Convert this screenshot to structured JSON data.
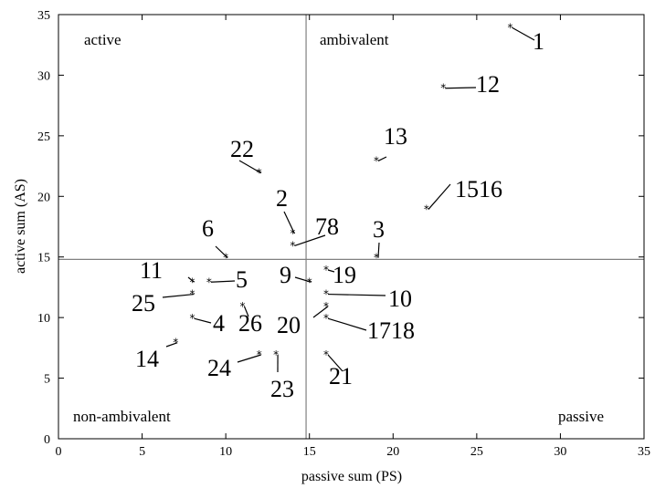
{
  "chart_data": {
    "type": "scatter",
    "xlabel": "passive sum (PS)",
    "ylabel": "active sum (AS)",
    "xlim": [
      0,
      35
    ],
    "ylim": [
      0,
      35
    ],
    "xticks": [
      "0",
      "5",
      "10",
      "15",
      "20",
      "25",
      "30",
      "35"
    ],
    "yticks": [
      "0",
      "5",
      "10",
      "15",
      "20",
      "25",
      "30",
      "35"
    ],
    "grid": false,
    "reference_lines": {
      "x": 14.8,
      "y": 14.8
    },
    "quadrant_labels": {
      "top_left": "active",
      "top_right": "ambivalent",
      "bottom_left": "non-ambivalent",
      "bottom_right": "passive"
    },
    "marker_color": "#000000",
    "reference_line_color": "#808080",
    "points": [
      {
        "label": "1",
        "x": 27,
        "y": 34
      },
      {
        "label": "12",
        "x": 23,
        "y": 29
      },
      {
        "label": "13",
        "x": 19,
        "y": 23
      },
      {
        "label": "22",
        "x": 12,
        "y": 22
      },
      {
        "label": "1516",
        "x": 22,
        "y": 19
      },
      {
        "label": "2",
        "x": 14,
        "y": 17
      },
      {
        "label": "78",
        "x": 14,
        "y": 16
      },
      {
        "label": "6",
        "x": 10,
        "y": 15
      },
      {
        "label": "3",
        "x": 19,
        "y": 15
      },
      {
        "label": "19",
        "x": 16,
        "y": 14
      },
      {
        "label": "11",
        "x": 8,
        "y": 13
      },
      {
        "label": "5",
        "x": 9,
        "y": 13
      },
      {
        "label": "9",
        "x": 15,
        "y": 13
      },
      {
        "label": "25",
        "x": 8,
        "y": 12
      },
      {
        "label": "10",
        "x": 16,
        "y": 12
      },
      {
        "label": "26",
        "x": 11,
        "y": 11
      },
      {
        "label": "20",
        "x": 16,
        "y": 11
      },
      {
        "label": "4",
        "x": 8,
        "y": 10
      },
      {
        "label": "1718",
        "x": 16,
        "y": 10
      },
      {
        "label": "14",
        "x": 7,
        "y": 8
      },
      {
        "label": "24",
        "x": 12,
        "y": 7
      },
      {
        "label": "23",
        "x": 13,
        "y": 7
      },
      {
        "label": "21",
        "x": 16,
        "y": 7
      }
    ]
  }
}
